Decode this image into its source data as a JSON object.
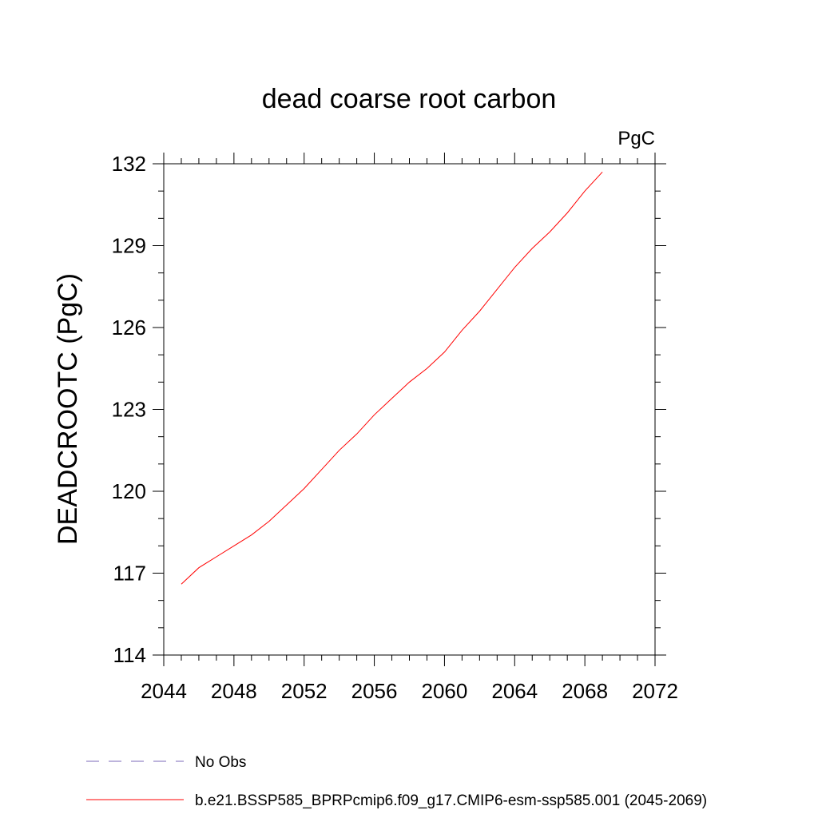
{
  "chart_data": {
    "type": "line",
    "title": "dead coarse root carbon",
    "units_label": "PgC",
    "ylabel": "DEADCROOTC  (PgC)",
    "xlabel": "",
    "xlim": [
      2044,
      2072
    ],
    "ylim": [
      114,
      132
    ],
    "x_ticks": [
      2044,
      2048,
      2052,
      2056,
      2060,
      2064,
      2068,
      2072
    ],
    "y_ticks": [
      114,
      117,
      120,
      123,
      126,
      129,
      132
    ],
    "x_tick_labels": [
      "2044",
      "2048",
      "2052",
      "2056",
      "2060",
      "2064",
      "2068",
      "2072"
    ],
    "y_tick_labels": [
      "114",
      "117",
      "120",
      "123",
      "126",
      "129",
      "132"
    ],
    "grid": false,
    "legend_position": "bottom",
    "series": [
      {
        "name": "b.e21.BSSP585_BPRPcmip6.f09_g17.CMIP6-esm-ssp585.001 (2045-2069)",
        "color": "#ff0000",
        "style": "solid",
        "x": [
          2045,
          2046,
          2047,
          2048,
          2049,
          2050,
          2051,
          2052,
          2053,
          2054,
          2055,
          2056,
          2057,
          2058,
          2059,
          2060,
          2061,
          2062,
          2063,
          2064,
          2065,
          2066,
          2067,
          2068,
          2069
        ],
        "y": [
          116.6,
          117.2,
          117.6,
          118.0,
          118.4,
          118.9,
          119.5,
          120.1,
          120.8,
          121.5,
          122.1,
          122.8,
          123.4,
          124.0,
          124.5,
          125.1,
          125.9,
          126.6,
          127.4,
          128.2,
          128.9,
          129.5,
          130.2,
          131.0,
          131.7
        ]
      }
    ],
    "legend": [
      {
        "label": "No Obs",
        "color": "#7b68b8",
        "style": "dashed"
      },
      {
        "label": "b.e21.BSSP585_BPRPcmip6.f09_g17.CMIP6-esm-ssp585.001 (2045-2069)",
        "color": "#ff0000",
        "style": "solid"
      }
    ]
  }
}
